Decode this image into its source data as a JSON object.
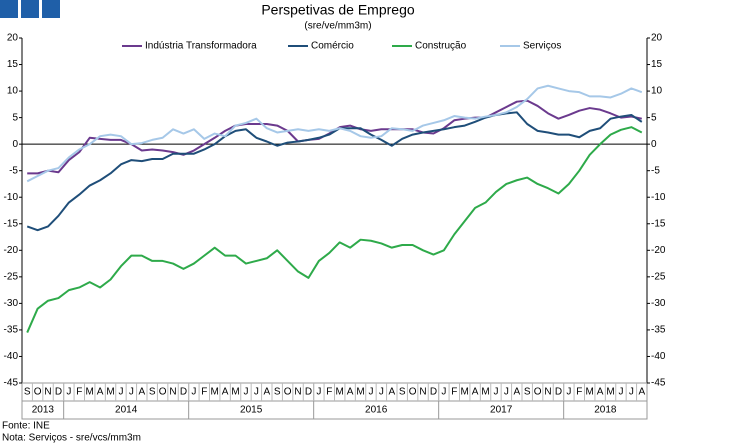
{
  "chart_data": {
    "type": "line",
    "title": "Perspetivas de Emprego",
    "subtitle": "(sre/ve/mm3m)",
    "categories": [
      "S",
      "O",
      "N",
      "D",
      "J",
      "F",
      "M",
      "A",
      "M",
      "J",
      "J",
      "A",
      "S",
      "O",
      "N",
      "D",
      "J",
      "F",
      "M",
      "A",
      "M",
      "J",
      "J",
      "A",
      "S",
      "O",
      "N",
      "D",
      "J",
      "F",
      "M",
      "A",
      "M",
      "J",
      "J",
      "A",
      "S",
      "O",
      "N",
      "D",
      "J",
      "F",
      "M",
      "A",
      "M",
      "J",
      "J",
      "A",
      "S",
      "O",
      "N",
      "D",
      "J",
      "F",
      "M",
      "A",
      "M",
      "J",
      "J",
      "A"
    ],
    "years": [
      "2013",
      "2014",
      "2015",
      "2016",
      "2017",
      "2018"
    ],
    "series": [
      {
        "name": "Indústria Transformadora",
        "color": "#6b3a8e",
        "values": [
          -5.5,
          -5.5,
          -5,
          -5.3,
          -3,
          -1.5,
          1.2,
          1,
          0.8,
          0.8,
          0,
          -1.2,
          -1,
          -1.2,
          -1.5,
          -2,
          -1.2,
          0,
          1.2,
          2.5,
          3.5,
          3.8,
          3.8,
          3.8,
          3.5,
          2.5,
          0.5,
          0.8,
          1,
          2,
          3.2,
          3.5,
          2.8,
          2.5,
          2.8,
          2.8,
          2.8,
          2.8,
          2.2,
          2,
          3,
          4.5,
          4.8,
          5,
          5,
          6,
          7,
          8,
          8.2,
          7.2,
          5.8,
          4.8,
          5.5,
          6.3,
          6.8,
          6.5,
          5.8,
          5,
          5.2,
          4.8
        ]
      },
      {
        "name": "Comércio",
        "color": "#1f4e79",
        "values": [
          -15.5,
          -16.2,
          -15.5,
          -13.5,
          -11,
          -9.5,
          -7.8,
          -6.8,
          -5.5,
          -3.8,
          -3,
          -3.2,
          -2.8,
          -2.8,
          -1.8,
          -1.8,
          -1.8,
          -1,
          0,
          1.5,
          2.5,
          2.8,
          1.2,
          0.5,
          -0.3,
          0.3,
          0.5,
          0.8,
          1.2,
          1.8,
          3,
          3,
          3,
          1.8,
          0.8,
          -0.3,
          1,
          1.8,
          2.2,
          2.5,
          2.8,
          3.2,
          3.5,
          4.2,
          5,
          5.5,
          5.8,
          6,
          3.8,
          2.5,
          2.2,
          1.8,
          1.8,
          1.3,
          2.5,
          3,
          4.8,
          5.2,
          5.5,
          4.2
        ]
      },
      {
        "name": "Construção",
        "color": "#2eaa4a",
        "values": [
          -35.5,
          -31,
          -29.5,
          -29,
          -27.5,
          -27,
          -26,
          -27,
          -25.5,
          -23,
          -21,
          -21,
          -22,
          -22,
          -22.5,
          -23.5,
          -22.5,
          -21,
          -19.5,
          -21,
          -21,
          -22.5,
          -22,
          -21.5,
          -20,
          -22,
          -24,
          -25.2,
          -22,
          -20.5,
          -18.5,
          -19.5,
          -18,
          -18.2,
          -18.7,
          -19.5,
          -19,
          -19,
          -20,
          -20.8,
          -20,
          -17,
          -14.5,
          -12,
          -11,
          -9,
          -7.5,
          -6.8,
          -6.3,
          -7.5,
          -8.3,
          -9.3,
          -7.5,
          -5,
          -2,
          0,
          1.8,
          2.7,
          3.2,
          2.2
        ]
      },
      {
        "name": "Serviços",
        "color": "#a6c8e8",
        "values": [
          -7,
          -6,
          -5,
          -4.5,
          -2.5,
          -1,
          0,
          1.5,
          1.8,
          1.5,
          0,
          0.2,
          0.8,
          1.2,
          2.8,
          2,
          2.8,
          1,
          2,
          1.5,
          3.5,
          4,
          4.8,
          3,
          2.2,
          2.5,
          2.8,
          2.5,
          2.8,
          2.5,
          3,
          2.5,
          1.5,
          1.2,
          1.5,
          3,
          2.8,
          2.5,
          3.5,
          4,
          4.5,
          5.3,
          5,
          4.8,
          5.2,
          5.5,
          6,
          7,
          8.5,
          10.5,
          11,
          10.5,
          10,
          9.8,
          9,
          9,
          8.8,
          9.5,
          10.5,
          9.8
        ]
      }
    ],
    "ylim": [
      -45,
      20
    ],
    "yticks": [
      -45,
      -40,
      -35,
      -30,
      -25,
      -20,
      -15,
      -10,
      -5,
      0,
      5,
      10,
      15,
      20
    ],
    "source": "Fonte: INE",
    "note": "Nota: Serviços - sre/vcs/mm3m"
  }
}
